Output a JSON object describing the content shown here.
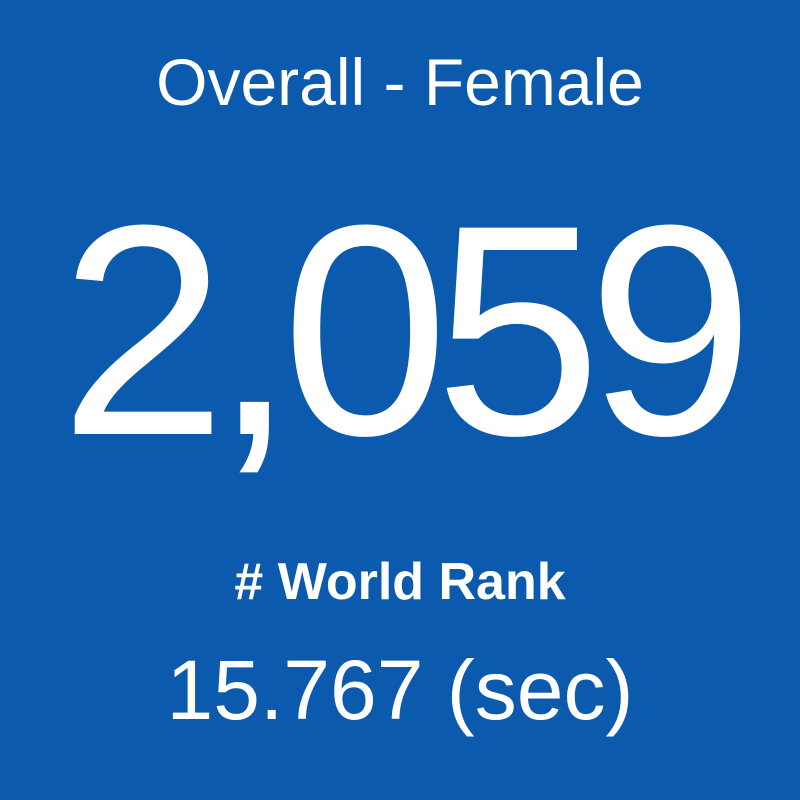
{
  "card": {
    "title": "Overall - Female",
    "value": "2,059",
    "label": "# World Rank",
    "time": "15.767 (sec)"
  }
}
